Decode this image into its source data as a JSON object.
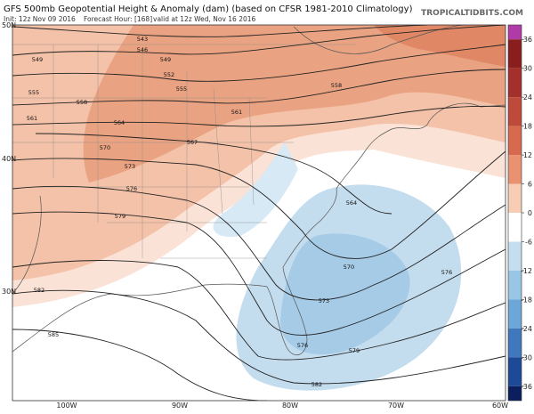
{
  "header": {
    "title": "GFS 500mb Geopotential Height & Anomaly (dam) (based on CFSR 1981-2010 Climatology)",
    "init": "Init: 12z Nov 09 2016",
    "forecast_hour": "Forecast Hour: [168]",
    "valid": "valid at 12z Wed, Nov 16 2016",
    "site": "TROPICALTIDBITS.COM"
  },
  "map": {
    "lat_labels": [
      "50N",
      "40N",
      "30N"
    ],
    "lon_labels": [
      "100W",
      "90W",
      "80W",
      "70W",
      "60W"
    ],
    "contour_labels": [
      543,
      546,
      549,
      549,
      552,
      555,
      555,
      558,
      558,
      561,
      561,
      564,
      564,
      567,
      570,
      570,
      573,
      573,
      576,
      576,
      576,
      579,
      579,
      582,
      582,
      585
    ]
  },
  "colorbar": {
    "range": [
      -39,
      39
    ],
    "ticks": [
      36,
      30,
      24,
      18,
      12,
      6,
      0,
      -6,
      -12,
      -18,
      -24,
      -30,
      -36
    ],
    "colors": [
      "#b03aa8",
      "#8a1d1d",
      "#a3302b",
      "#bd4a3a",
      "#d56a4e",
      "#e99272",
      "#f7cdb6",
      "#ffffff",
      "#c4def0",
      "#9ac6e6",
      "#6da6d8",
      "#3f78bd",
      "#1d4a96",
      "#0b1f5e"
    ]
  }
}
